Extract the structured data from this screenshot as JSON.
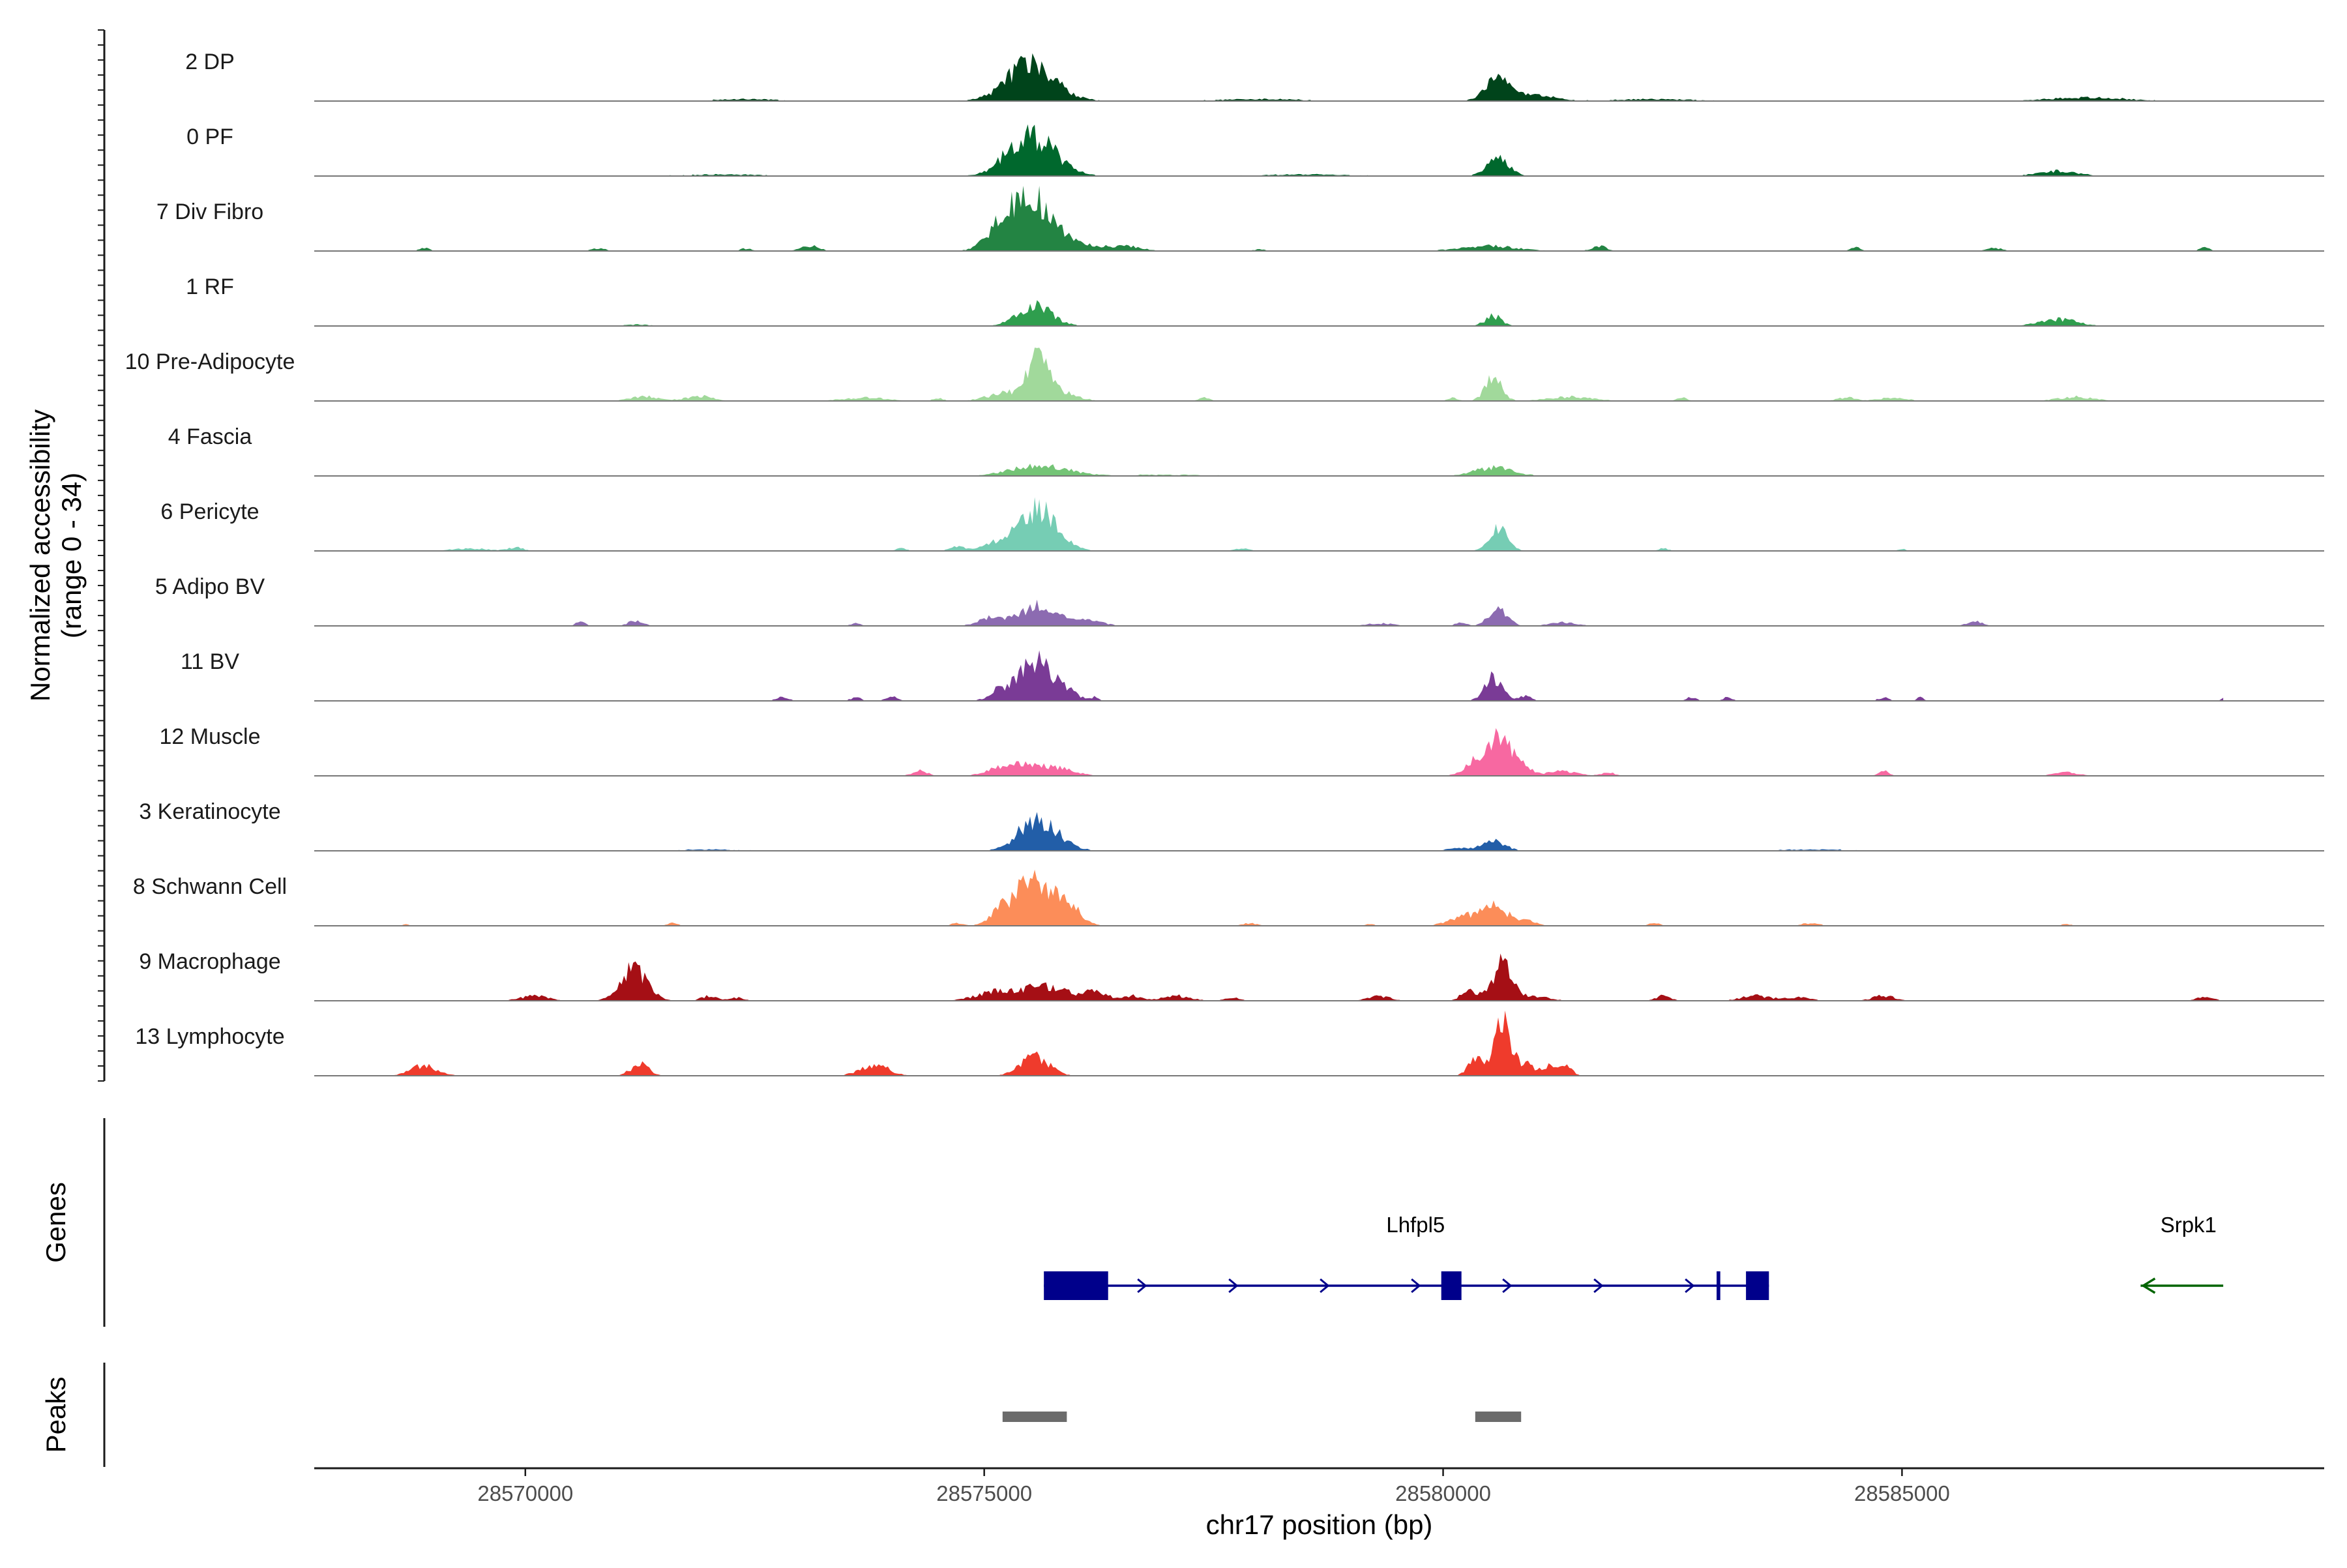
{
  "chart_data": {
    "type": "area",
    "chromosome": "chr17",
    "xlabel": "chr17 position (bp)",
    "ylabel_line1": "Normalized accessibility",
    "ylabel_line2": "(range 0 - 34)",
    "y_range": [
      0,
      34
    ],
    "xlim": [
      28567700,
      28589600
    ],
    "x_ticks": [
      {
        "value": 28570000,
        "label": "28570000"
      },
      {
        "value": 28575000,
        "label": "28575000"
      },
      {
        "value": 28580000,
        "label": "28580000"
      },
      {
        "value": 28585000,
        "label": "28585000"
      }
    ],
    "coverage_span": [
      28568000,
      28588500
    ],
    "series": [
      {
        "name": "2 DP",
        "color": "#00441b",
        "baseline": 0.3,
        "peaks": [
          [
            28575550,
            18,
            250
          ],
          [
            28575350,
            6,
            200
          ],
          [
            28580580,
            11,
            120
          ],
          [
            28580900,
            4,
            250
          ],
          [
            28587000,
            2,
            400
          ],
          [
            28572400,
            1,
            300
          ],
          [
            28578000,
            1,
            400
          ],
          [
            28582300,
            1,
            400
          ]
        ]
      },
      {
        "name": "0 PF",
        "color": "#00682d",
        "baseline": 0.25,
        "peaks": [
          [
            28575550,
            22,
            240
          ],
          [
            28575300,
            5,
            180
          ],
          [
            28580600,
            10,
            120
          ],
          [
            28586700,
            3,
            200
          ],
          [
            28572200,
            0.8,
            400
          ],
          [
            28578500,
            0.8,
            500
          ]
        ]
      },
      {
        "name": "7 Div Fibro",
        "color": "#238443",
        "baseline": 0,
        "peaks": [
          [
            28575500,
            33,
            250
          ],
          [
            28575150,
            8,
            120
          ],
          [
            28576200,
            3,
            200
          ],
          [
            28576600,
            2.5,
            150
          ],
          [
            28573100,
            3,
            100
          ],
          [
            28568900,
            2,
            60
          ],
          [
            28570800,
            1.5,
            80
          ],
          [
            28572400,
            1.5,
            60
          ],
          [
            28580500,
            3,
            300
          ],
          [
            28581700,
            3,
            80
          ],
          [
            28584500,
            2,
            60
          ],
          [
            28586000,
            2,
            80
          ],
          [
            28588300,
            2,
            60
          ],
          [
            28578000,
            1,
            60
          ]
        ]
      },
      {
        "name": "1 RF",
        "color": "#2f9e4e",
        "baseline": 0.1,
        "peaks": [
          [
            28575550,
            13,
            180
          ],
          [
            28580550,
            6,
            90
          ],
          [
            28586700,
            4,
            200
          ],
          [
            28571200,
            0.8,
            150
          ]
        ]
      },
      {
        "name": "10 Pre-Adipocyte",
        "color": "#a1d99b",
        "baseline": 0,
        "peaks": [
          [
            28575600,
            25,
            120
          ],
          [
            28575250,
            5,
            200
          ],
          [
            28575900,
            4,
            150
          ],
          [
            28580550,
            15,
            90
          ],
          [
            28571300,
            3,
            150
          ],
          [
            28571900,
            3,
            150
          ],
          [
            28573700,
            2,
            250
          ],
          [
            28574500,
            1.5,
            60
          ],
          [
            28577400,
            2,
            60
          ],
          [
            28580100,
            2,
            60
          ],
          [
            28581400,
            2.5,
            250
          ],
          [
            28582600,
            2,
            60
          ],
          [
            28584400,
            2,
            100
          ],
          [
            28584900,
            2,
            150
          ],
          [
            28586900,
            2.5,
            200
          ]
        ]
      },
      {
        "name": "4 Fascia",
        "color": "#74c476",
        "baseline": 0.2,
        "peaks": [
          [
            28575600,
            6,
            300
          ],
          [
            28580550,
            5,
            200
          ],
          [
            28577000,
            0.6,
            500
          ]
        ]
      },
      {
        "name": "6 Pericyte",
        "color": "#76cdb4",
        "baseline": 0.05,
        "peaks": [
          [
            28575600,
            24,
            200
          ],
          [
            28575250,
            6,
            200
          ],
          [
            28580600,
            13,
            100
          ],
          [
            28569900,
            2,
            80
          ],
          [
            28569400,
            1.5,
            200
          ],
          [
            28574700,
            2.5,
            80
          ],
          [
            28574100,
            1.5,
            60
          ],
          [
            28577800,
            1.5,
            80
          ],
          [
            28582400,
            1.5,
            60
          ],
          [
            28585000,
            1,
            60
          ]
        ]
      },
      {
        "name": "5 Adipo BV",
        "color": "#8c6bb1",
        "baseline": 0.1,
        "peaks": [
          [
            28575600,
            12,
            200
          ],
          [
            28575100,
            5,
            150
          ],
          [
            28576150,
            3,
            150
          ],
          [
            28580600,
            10,
            100
          ],
          [
            28580200,
            2,
            60
          ],
          [
            28581300,
            2,
            150
          ],
          [
            28571200,
            3,
            80
          ],
          [
            28570600,
            2,
            60
          ],
          [
            28573600,
            1.5,
            60
          ],
          [
            28579300,
            1.5,
            150
          ],
          [
            28585800,
            3,
            80
          ]
        ]
      },
      {
        "name": "11 BV",
        "color": "#7a3b96",
        "baseline": 0,
        "peaks": [
          [
            28575550,
            24,
            180
          ],
          [
            28575150,
            6,
            100
          ],
          [
            28575900,
            5,
            120
          ],
          [
            28580550,
            14,
            100
          ],
          [
            28580900,
            3,
            60
          ],
          [
            28572800,
            3,
            60
          ],
          [
            28573600,
            2,
            60
          ],
          [
            28574000,
            3,
            60
          ],
          [
            28576200,
            2,
            40
          ],
          [
            28582700,
            2,
            60
          ],
          [
            28583100,
            2,
            60
          ],
          [
            28584800,
            2,
            60
          ],
          [
            28585200,
            2,
            40
          ],
          [
            28588500,
            1.5,
            30
          ]
        ]
      },
      {
        "name": "12 Muscle",
        "color": "#f768a1",
        "baseline": 0,
        "peaks": [
          [
            28580600,
            25,
            120
          ],
          [
            28580350,
            8,
            120
          ],
          [
            28580850,
            7,
            100
          ],
          [
            28581300,
            3,
            150
          ],
          [
            28575300,
            7,
            200
          ],
          [
            28575750,
            5,
            200
          ],
          [
            28574300,
            3,
            80
          ],
          [
            28581800,
            2,
            80
          ],
          [
            28584800,
            3,
            60
          ],
          [
            28586800,
            2,
            150
          ]
        ]
      },
      {
        "name": "3 Keratinocyte",
        "color": "#225ea8",
        "baseline": 0.3,
        "peaks": [
          [
            28575550,
            19,
            180
          ],
          [
            28575850,
            4,
            150
          ],
          [
            28580550,
            6,
            120
          ],
          [
            28580200,
            1.5,
            150
          ],
          [
            28572000,
            0.7,
            300
          ],
          [
            28584000,
            0.7,
            400
          ]
        ]
      },
      {
        "name": "8 Schwann Cell",
        "color": "#fc8d59",
        "baseline": 0.05,
        "peaks": [
          [
            28575550,
            26,
            230
          ],
          [
            28575950,
            7,
            120
          ],
          [
            28575200,
            5,
            120
          ],
          [
            28580550,
            12,
            150
          ],
          [
            28580200,
            5,
            150
          ],
          [
            28580900,
            3,
            100
          ],
          [
            28571600,
            1.5,
            60
          ],
          [
            28574700,
            1.5,
            60
          ],
          [
            28577900,
            1.5,
            80
          ],
          [
            28579200,
            1,
            60
          ],
          [
            28582300,
            1.5,
            60
          ],
          [
            28584000,
            1.5,
            100
          ],
          [
            28586800,
            1,
            60
          ],
          [
            28568700,
            1,
            30
          ]
        ]
      },
      {
        "name": "9 Macrophage",
        "color": "#a50f15",
        "baseline": 0,
        "peaks": [
          [
            28571200,
            17,
            140
          ],
          [
            28571050,
            5,
            100
          ],
          [
            28575200,
            6,
            250
          ],
          [
            28575700,
            8,
            200
          ],
          [
            28576200,
            5,
            150
          ],
          [
            28576600,
            3,
            100
          ],
          [
            28577100,
            3,
            150
          ],
          [
            28577700,
            2,
            80
          ],
          [
            28580650,
            23,
            100
          ],
          [
            28580300,
            6,
            100
          ],
          [
            28581000,
            3,
            150
          ],
          [
            28570100,
            3,
            150
          ],
          [
            28572000,
            3,
            80
          ],
          [
            28572300,
            2,
            80
          ],
          [
            28579300,
            3,
            120
          ],
          [
            28582400,
            3,
            80
          ],
          [
            28583400,
            3,
            150
          ],
          [
            28583850,
            2,
            150
          ],
          [
            28584800,
            3,
            120
          ],
          [
            28588300,
            2,
            100
          ]
        ]
      },
      {
        "name": "13 Lymphocyte",
        "color": "#ef3b2c",
        "baseline": 0,
        "peaks": [
          [
            28580650,
            32,
            90
          ],
          [
            28580350,
            10,
            80
          ],
          [
            28580900,
            7,
            80
          ],
          [
            28581150,
            6,
            80
          ],
          [
            28581350,
            6,
            60
          ],
          [
            28568900,
            6,
            150
          ],
          [
            28571250,
            7,
            100
          ],
          [
            28573800,
            7,
            150
          ],
          [
            28575550,
            12,
            150
          ]
        ]
      }
    ],
    "genes": [
      {
        "name": "Lhfpl5",
        "strand": "+",
        "start": 28575650,
        "end": 28583550,
        "color": "#00008b",
        "exons": [
          [
            28575650,
            28576350
          ],
          [
            28579980,
            28580200
          ],
          [
            28582980,
            28583020
          ],
          [
            28583300,
            28583550
          ]
        ]
      },
      {
        "name": "Srpk1",
        "strand": "-",
        "start": 28587600,
        "end": 28588500,
        "color": "#006400",
        "exons": []
      }
    ],
    "peaks_track": [
      [
        28575200,
        28575900
      ],
      [
        28580350,
        28580850
      ]
    ],
    "peaks_color": "#6b6b6b",
    "track_labels": {
      "genes": "Genes",
      "peaks": "Peaks"
    }
  }
}
